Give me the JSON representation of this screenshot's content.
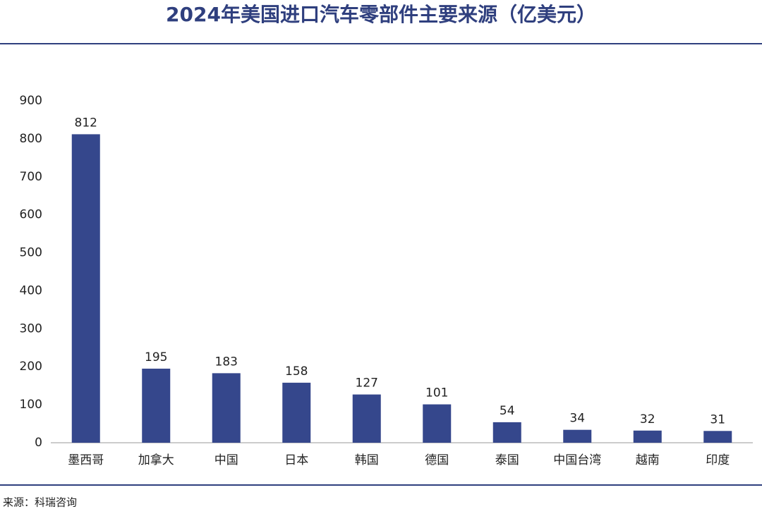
{
  "chart_data": {
    "type": "bar",
    "title": "2024年美国进口汽车零部件主要来源（亿美元）",
    "source": "来源：科瑞咨询",
    "categories": [
      "墨西哥",
      "加拿大",
      "中国",
      "日本",
      "韩国",
      "德国",
      "泰国",
      "中国台湾",
      "越南",
      "印度"
    ],
    "values": [
      812,
      195,
      183,
      158,
      127,
      101,
      54,
      34,
      32,
      31
    ],
    "color": "#35478c",
    "ylim": [
      0,
      900
    ],
    "yticks": [
      0,
      100,
      200,
      300,
      400,
      500,
      600,
      700,
      800,
      900
    ],
    "grid": false
  }
}
